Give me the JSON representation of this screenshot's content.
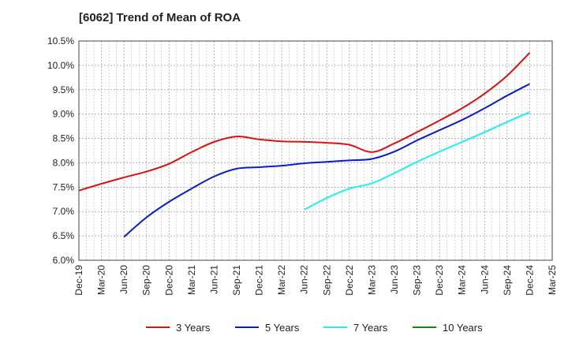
{
  "title": "[6062]  Trend of Mean of ROA",
  "chart_data": {
    "type": "line",
    "title": "[6062]  Trend of Mean of ROA",
    "xlabel": "",
    "ylabel": "",
    "x": [
      "Dec-19",
      "Mar-20",
      "Jun-20",
      "Sep-20",
      "Dec-20",
      "Mar-21",
      "Jun-21",
      "Sep-21",
      "Dec-21",
      "Mar-22",
      "Jun-22",
      "Sep-22",
      "Dec-22",
      "Mar-23",
      "Jun-23",
      "Sep-23",
      "Dec-23",
      "Mar-24",
      "Jun-24",
      "Sep-24",
      "Dec-24",
      "Mar-25"
    ],
    "ylim": [
      6.0,
      10.5
    ],
    "yticks": [
      "6.0%",
      "6.5%",
      "7.0%",
      "7.5%",
      "8.0%",
      "8.5%",
      "9.0%",
      "9.5%",
      "10.0%",
      "10.5%"
    ],
    "grid": true,
    "legend_position": "bottom",
    "series": [
      {
        "name": "3 Years",
        "color": "#dd1111",
        "values": [
          7.43,
          7.57,
          7.7,
          7.82,
          7.98,
          8.22,
          8.43,
          8.54,
          8.48,
          8.44,
          8.43,
          8.41,
          8.37,
          8.22,
          8.4,
          8.63,
          8.87,
          9.12,
          9.42,
          9.79,
          10.26,
          null
        ]
      },
      {
        "name": "5 Years",
        "color": "#0a1ccc",
        "values": [
          null,
          null,
          6.48,
          6.88,
          7.2,
          7.47,
          7.72,
          7.88,
          7.91,
          7.94,
          7.99,
          8.02,
          8.05,
          8.08,
          8.23,
          8.46,
          8.67,
          8.88,
          9.12,
          9.38,
          9.62,
          null
        ]
      },
      {
        "name": "7 Years",
        "color": "#22f0f0",
        "values": [
          null,
          null,
          null,
          null,
          null,
          null,
          null,
          null,
          null,
          null,
          7.04,
          7.28,
          7.47,
          7.58,
          7.79,
          8.02,
          8.23,
          8.43,
          8.63,
          8.84,
          9.04,
          null
        ]
      },
      {
        "name": "10 Years",
        "color": "#118811",
        "values": [
          null,
          null,
          null,
          null,
          null,
          null,
          null,
          null,
          null,
          null,
          null,
          null,
          null,
          null,
          null,
          null,
          null,
          null,
          null,
          null,
          null,
          null
        ]
      }
    ]
  }
}
